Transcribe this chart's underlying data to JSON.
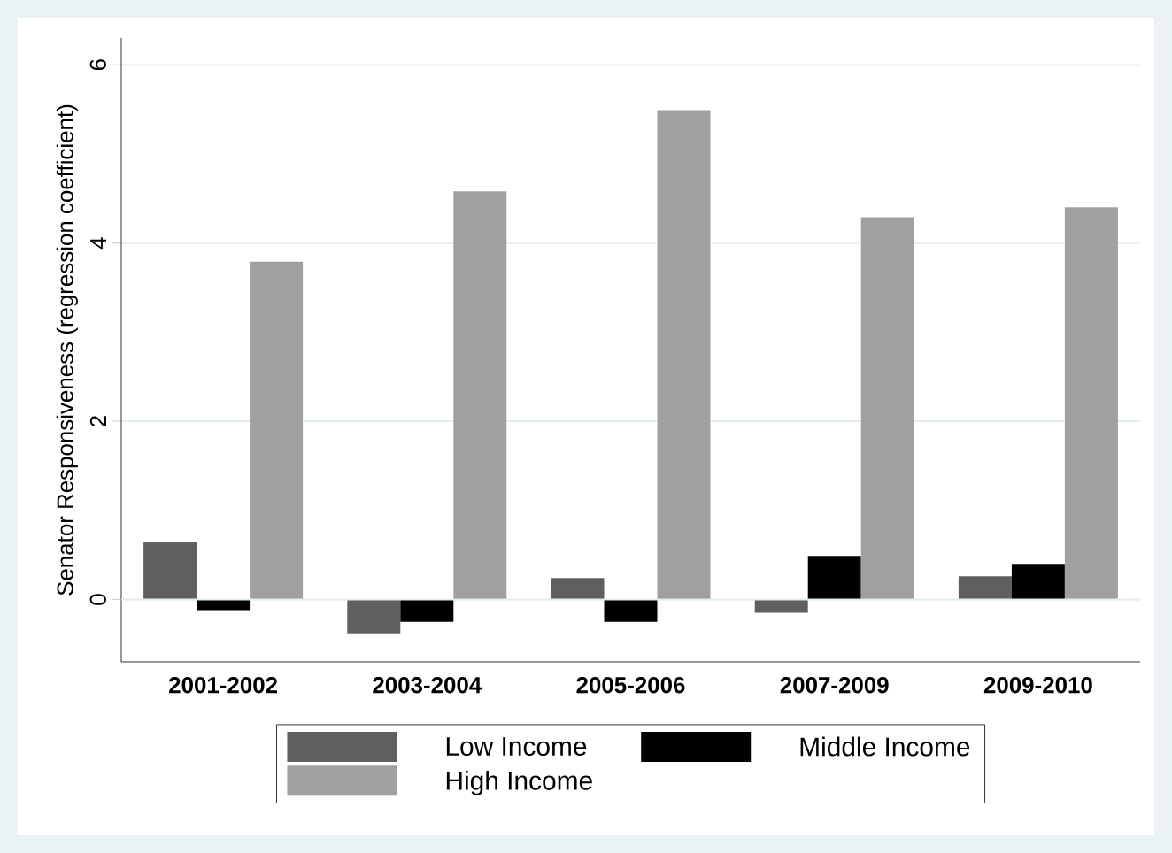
{
  "chart_data": {
    "type": "bar",
    "ylabel": "Senator Responsiveness (regression coefficient)",
    "categories": [
      "2001-2002",
      "2003-2004",
      "2005-2006",
      "2007-2009",
      "2009-2010"
    ],
    "series": [
      {
        "name": "Low Income",
        "color": "#5f5f5f",
        "values": [
          0.64,
          -0.38,
          0.24,
          -0.15,
          0.26
        ]
      },
      {
        "name": "Middle Income",
        "color": "#000000",
        "values": [
          -0.12,
          -0.25,
          -0.25,
          0.49,
          0.4
        ]
      },
      {
        "name": "High Income",
        "color": "#a0a0a0",
        "values": [
          3.79,
          4.58,
          5.49,
          4.29,
          4.4
        ]
      }
    ],
    "ylim": [
      -0.7,
      6.3
    ],
    "yticks": [
      0,
      2,
      4,
      6
    ],
    "grid": "y",
    "legend": "bottom"
  }
}
